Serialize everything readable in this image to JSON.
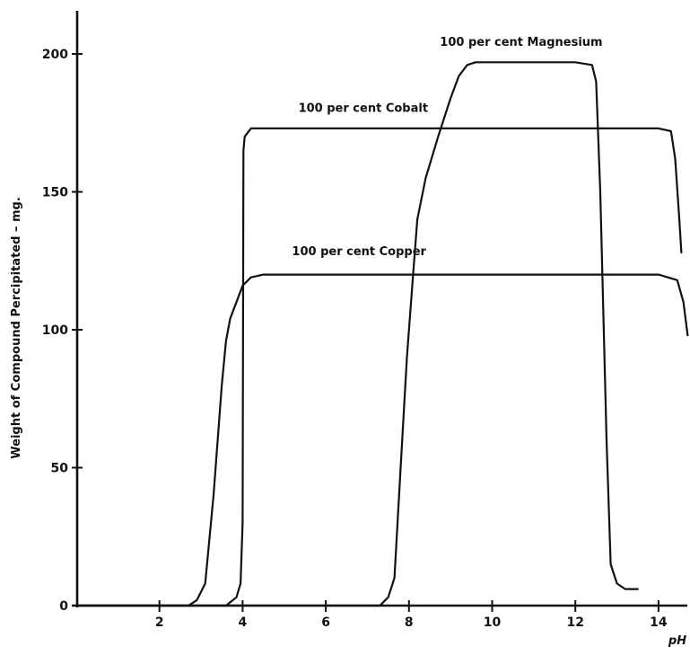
{
  "chart_data": {
    "type": "line",
    "title": "",
    "xlabel": "pH",
    "ylabel": "Weight of Compound Percipitated – mg.",
    "xlim": [
      0,
      14.8
    ],
    "ylim": [
      0,
      215
    ],
    "x_ticks": [
      2,
      4,
      6,
      8,
      10,
      12,
      14
    ],
    "x_tick_labels": [
      "2",
      "4",
      "6",
      "8",
      "10",
      "12",
      "14"
    ],
    "y_ticks": [
      0,
      50,
      100,
      150,
      200
    ],
    "y_tick_labels": [
      "0",
      "50",
      "100",
      "150",
      "200"
    ],
    "grid": false,
    "series": [
      {
        "name": "100 per cent Copper",
        "x": [
          0,
          2.7,
          2.9,
          3.1,
          3.3,
          3.5,
          3.6,
          3.7,
          3.85,
          4.0,
          4.2,
          4.5,
          6,
          10,
          14,
          14.45,
          14.6,
          14.7
        ],
        "y": [
          0,
          0,
          2,
          8,
          40,
          80,
          96,
          104,
          110,
          116,
          119,
          120,
          120,
          120,
          120,
          118,
          110,
          98
        ]
      },
      {
        "name": "100 per cent Cobalt",
        "x": [
          0,
          3.6,
          3.85,
          3.95,
          4.0,
          4.02,
          4.05,
          4.2,
          6,
          10,
          14,
          14.3,
          14.4,
          14.5,
          14.55
        ],
        "y": [
          0,
          0,
          3,
          8,
          30,
          165,
          170,
          173,
          173,
          173,
          173,
          172,
          162,
          140,
          128
        ]
      },
      {
        "name": "100 per cent Magnesium",
        "x": [
          0,
          7.3,
          7.5,
          7.65,
          7.8,
          7.95,
          8.1,
          8.2,
          8.4,
          8.7,
          9.0,
          9.2,
          9.4,
          9.6,
          10,
          12,
          12.4,
          12.5,
          12.6,
          12.75,
          12.85,
          13.0,
          13.2,
          13.5
        ],
        "y": [
          0,
          0,
          3,
          10,
          50,
          90,
          120,
          140,
          155,
          170,
          184,
          192,
          196,
          197,
          197,
          197,
          196,
          190,
          150,
          60,
          15,
          8,
          6,
          6
        ]
      }
    ]
  }
}
